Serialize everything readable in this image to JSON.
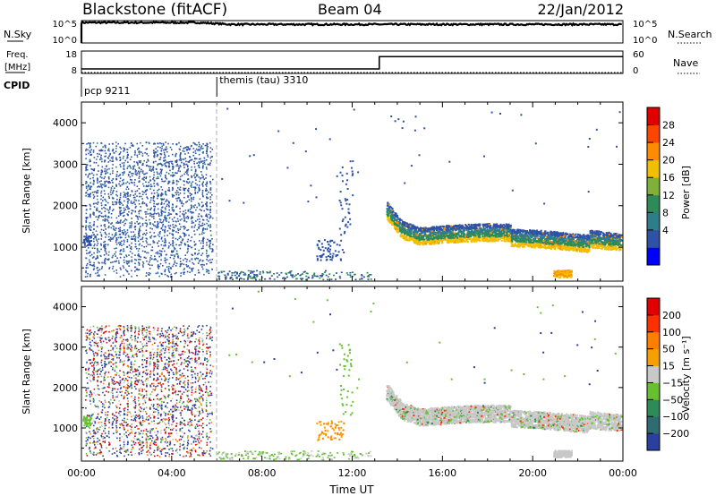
{
  "header": {
    "station": "Blackstone (fitACF)",
    "beam": "Beam 04",
    "date": "22/Jan/2012"
  },
  "noise_panel": {
    "left_label": "N.Sky",
    "right_label": "N.Search",
    "left_ticks": [
      "10^5",
      "10^0"
    ],
    "right_ticks": [
      "10^5",
      "10^0"
    ]
  },
  "freq_panel": {
    "left_label_1": "Freq.",
    "left_label_2": "[MHz]",
    "right_label": "Nave",
    "left_ticks": [
      "18",
      "8"
    ],
    "right_ticks": [
      "60",
      "0"
    ]
  },
  "cpid_panel": {
    "label": "CPID",
    "entries": [
      {
        "text": "pcp 9211",
        "start_hour": 0
      },
      {
        "text": "themis (tau) 3310",
        "start_hour": 6
      }
    ]
  },
  "power_panel": {
    "ylabel": "Slant Range [km]",
    "colorbar_label": "Power [dB]",
    "colorbar_ticks": [
      "28",
      "24",
      "20",
      "16",
      "12",
      "8",
      "4"
    ]
  },
  "velocity_panel": {
    "ylabel": "Slant Range [km]",
    "colorbar_label": "Velocity [m s⁻¹]",
    "colorbar_ticks": [
      "200",
      "100",
      "50",
      "15",
      "−15",
      "−50",
      "−100",
      "−200"
    ]
  },
  "xaxis": {
    "label": "Time UT",
    "ticks": [
      "00:00",
      "04:00",
      "08:00",
      "12:00",
      "16:00",
      "20:00",
      "00:00"
    ]
  },
  "colors": {
    "power_scale": [
      "#0000ff",
      "#2d52a6",
      "#2e7d8a",
      "#2e8b57",
      "#7fb03a",
      "#f0c000",
      "#ff8c00",
      "#ff4500",
      "#e00000"
    ],
    "velocity_scale": [
      "#2a3fa0",
      "#2e6b73",
      "#2e8b57",
      "#66c032",
      "#c8c8c8",
      "#f5a000",
      "#ff7f00",
      "#ff3000",
      "#e00000"
    ]
  },
  "chart_data": [
    {
      "type": "line",
      "title": "",
      "series": [
        {
          "name": "N.Sky",
          "description_level": "mostly ~10^4, slightly higher before 06:00"
        }
      ],
      "x_range_hours": [
        0,
        24
      ],
      "y_scale": "log",
      "ylim": [
        1,
        100000
      ]
    },
    {
      "type": "line",
      "series": [
        {
          "name": "Freq.",
          "x_hours": [
            0,
            6,
            13.2,
            24
          ],
          "values": [
            10,
            10,
            15.5,
            15.5
          ]
        },
        {
          "name": "Nave",
          "x_hours": [
            0,
            24
          ],
          "values": [
            0,
            0
          ]
        }
      ],
      "x_range_hours": [
        0,
        24
      ],
      "ylim_freq": [
        8,
        18
      ],
      "ylim_nave": [
        0,
        60
      ]
    },
    {
      "type": "heatmap",
      "title": "Power [dB]",
      "xlabel": "Time UT",
      "ylabel": "Slant Range [km]",
      "x_range_hours": [
        0,
        24
      ],
      "ylim": [
        180,
        4500
      ],
      "color_range": [
        0,
        32
      ],
      "scatter_regions": [
        {
          "t0": 0.1,
          "t1": 5.8,
          "r0": 300,
          "r1": 3550,
          "level_db": 8,
          "density": "dense"
        },
        {
          "t0": 13.5,
          "t1": 23.9,
          "r0": 950,
          "r1": 1900,
          "level_db": 12,
          "density": "dense band"
        },
        {
          "t0": 20.9,
          "t1": 21.7,
          "r0": 300,
          "r1": 450,
          "level_db": 24,
          "density": "patch"
        },
        {
          "t0": 6.0,
          "t1": 12.5,
          "r0": 250,
          "r1": 400,
          "level_db": 12,
          "density": "sparse"
        }
      ]
    },
    {
      "type": "heatmap",
      "title": "Velocity [m s⁻¹]",
      "xlabel": "Time UT",
      "ylabel": "Slant Range [km]",
      "x_range_hours": [
        0,
        24
      ],
      "ylim": [
        180,
        4500
      ],
      "color_range": [
        -200,
        200
      ],
      "scatter_regions": [
        {
          "t0": 0.1,
          "t1": 5.8,
          "r0": 300,
          "r1": 3550,
          "velocity": "mixed positive and negative",
          "density": "dense"
        },
        {
          "t0": 13.5,
          "t1": 23.9,
          "r0": 950,
          "r1": 1900,
          "velocity": "near zero (ground scatter)",
          "density": "dense band"
        },
        {
          "t0": 20.9,
          "t1": 21.7,
          "r0": 300,
          "r1": 450,
          "velocity": "near zero",
          "density": "patch"
        }
      ]
    }
  ]
}
